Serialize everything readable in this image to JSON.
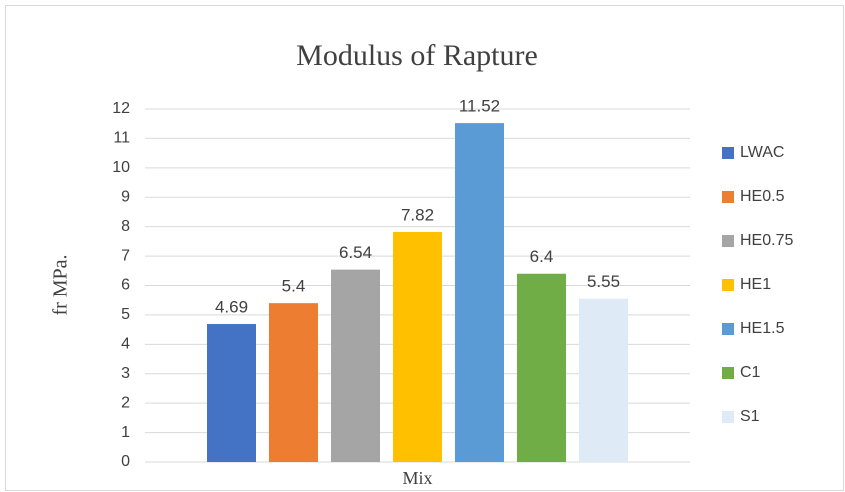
{
  "chart_data": {
    "type": "bar",
    "title": "Modulus of Rapture",
    "y_label": "fr MPa.",
    "categories": [
      "Mix"
    ],
    "series": [
      {
        "name": "LWAC",
        "color": "#4472c4",
        "values": [
          4.69
        ]
      },
      {
        "name": "HE0.5",
        "color": "#ed7d31",
        "values": [
          5.4
        ]
      },
      {
        "name": "HE0.75",
        "color": "#a5a5a5",
        "values": [
          6.54
        ]
      },
      {
        "name": "HE1",
        "color": "#ffc000",
        "values": [
          7.82
        ]
      },
      {
        "name": "HE1.5",
        "color": "#5b9bd5",
        "values": [
          11.52
        ]
      },
      {
        "name": "C1",
        "color": "#70ad47",
        "values": [
          6.4
        ]
      },
      {
        "name": "S1",
        "color": "#deebf7",
        "values": [
          5.55
        ]
      }
    ],
    "ylim": [
      0,
      12
    ],
    "yticks": [
      0,
      1,
      2,
      3,
      4,
      5,
      6,
      7,
      8,
      9,
      10,
      11,
      12
    ],
    "grid": true,
    "legend": "right"
  }
}
